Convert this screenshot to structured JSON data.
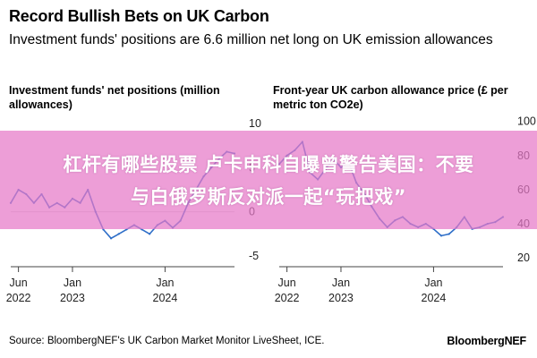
{
  "header": {
    "title": "Record Bullish Bets on UK Carbon",
    "subtitle": "Investment funds' positions are 6.6 million net long on UK emission allowances"
  },
  "footer": {
    "source": "Source: BloombergNEF's UK Carbon Market Monitor LiveSheet, ICE.",
    "brand": "BloombergNEF"
  },
  "banner": {
    "line1": "杠杆有哪些股票 卢卡申科自曝曾警告美国：不要",
    "line2": "与白俄罗斯反对派一起“玩把戏”"
  },
  "colors": {
    "series": "#2e6ec8",
    "zero_line": "#d8d8d8",
    "banner": "#e678c8"
  },
  "chart_data": [
    {
      "type": "line",
      "title": "Investment funds' net positions (million allowances)",
      "xlabel": "",
      "ylabel": "",
      "x_ticks": [
        {
          "x": "2022-06",
          "label": "Jun",
          "sublabel": "2022"
        },
        {
          "x": "2023-01",
          "label": "Jan",
          "sublabel": "2023"
        },
        {
          "x": "2024-01",
          "label": "Jan",
          "sublabel": "2024"
        }
      ],
      "y_ticks": [
        10,
        5,
        0,
        -5
      ],
      "ylim": [
        -5.6,
        11
      ],
      "xlim": [
        "2022-05",
        "2024-10"
      ],
      "y_axis_side": "right",
      "reference_line": 0,
      "series": [
        {
          "x": [
            "2022-05",
            "2022-06",
            "2022-07",
            "2022-08",
            "2022-09",
            "2022-10",
            "2022-11",
            "2022-12",
            "2023-01",
            "2023-02",
            "2023-03",
            "2023-04",
            "2023-05",
            "2023-06",
            "2023-07",
            "2023-08",
            "2023-09",
            "2023-10",
            "2023-11",
            "2023-12",
            "2024-01",
            "2024-02",
            "2024-03",
            "2024-04",
            "2024-05",
            "2024-06",
            "2024-07",
            "2024-08",
            "2024-09",
            "2024-10"
          ],
          "values": [
            1.0,
            2.5,
            2.0,
            1.0,
            2.0,
            0.5,
            1.0,
            0.5,
            1.5,
            1.0,
            2.5,
            0.0,
            -2.0,
            -3.0,
            -2.5,
            -2.0,
            -1.5,
            -2.0,
            -2.5,
            -1.5,
            -1.0,
            -1.8,
            -1.0,
            1.0,
            2.5,
            4.0,
            5.0,
            6.0,
            6.8,
            6.6
          ]
        }
      ]
    },
    {
      "type": "line",
      "title": "Front-year UK carbon allowance price (£ per metric ton CO2e)",
      "xlabel": "",
      "ylabel": "",
      "x_ticks": [
        {
          "x": "2022-06",
          "label": "Jun",
          "sublabel": "2022"
        },
        {
          "x": "2023-01",
          "label": "Jan",
          "sublabel": "2023"
        },
        {
          "x": "2024-01",
          "label": "Jan",
          "sublabel": "2024"
        }
      ],
      "y_ticks": [
        100,
        80,
        60,
        40,
        20
      ],
      "ylim": [
        18,
        104
      ],
      "xlim": [
        "2022-05",
        "2024-10"
      ],
      "y_axis_side": "right",
      "series": [
        {
          "x": [
            "2022-05",
            "2022-06",
            "2022-07",
            "2022-08",
            "2022-09",
            "2022-10",
            "2022-11",
            "2022-12",
            "2023-01",
            "2023-02",
            "2023-03",
            "2023-04",
            "2023-05",
            "2023-06",
            "2023-07",
            "2023-08",
            "2023-09",
            "2023-10",
            "2023-11",
            "2023-12",
            "2024-01",
            "2024-02",
            "2024-03",
            "2024-04",
            "2024-05",
            "2024-06",
            "2024-07",
            "2024-08",
            "2024-09",
            "2024-10"
          ],
          "values": [
            75,
            80,
            83,
            88,
            70,
            66,
            72,
            78,
            73,
            76,
            64,
            58,
            50,
            43,
            38,
            42,
            44,
            40,
            38,
            40,
            37,
            33,
            34,
            38,
            44,
            37,
            38,
            40,
            41,
            44
          ]
        }
      ]
    }
  ]
}
